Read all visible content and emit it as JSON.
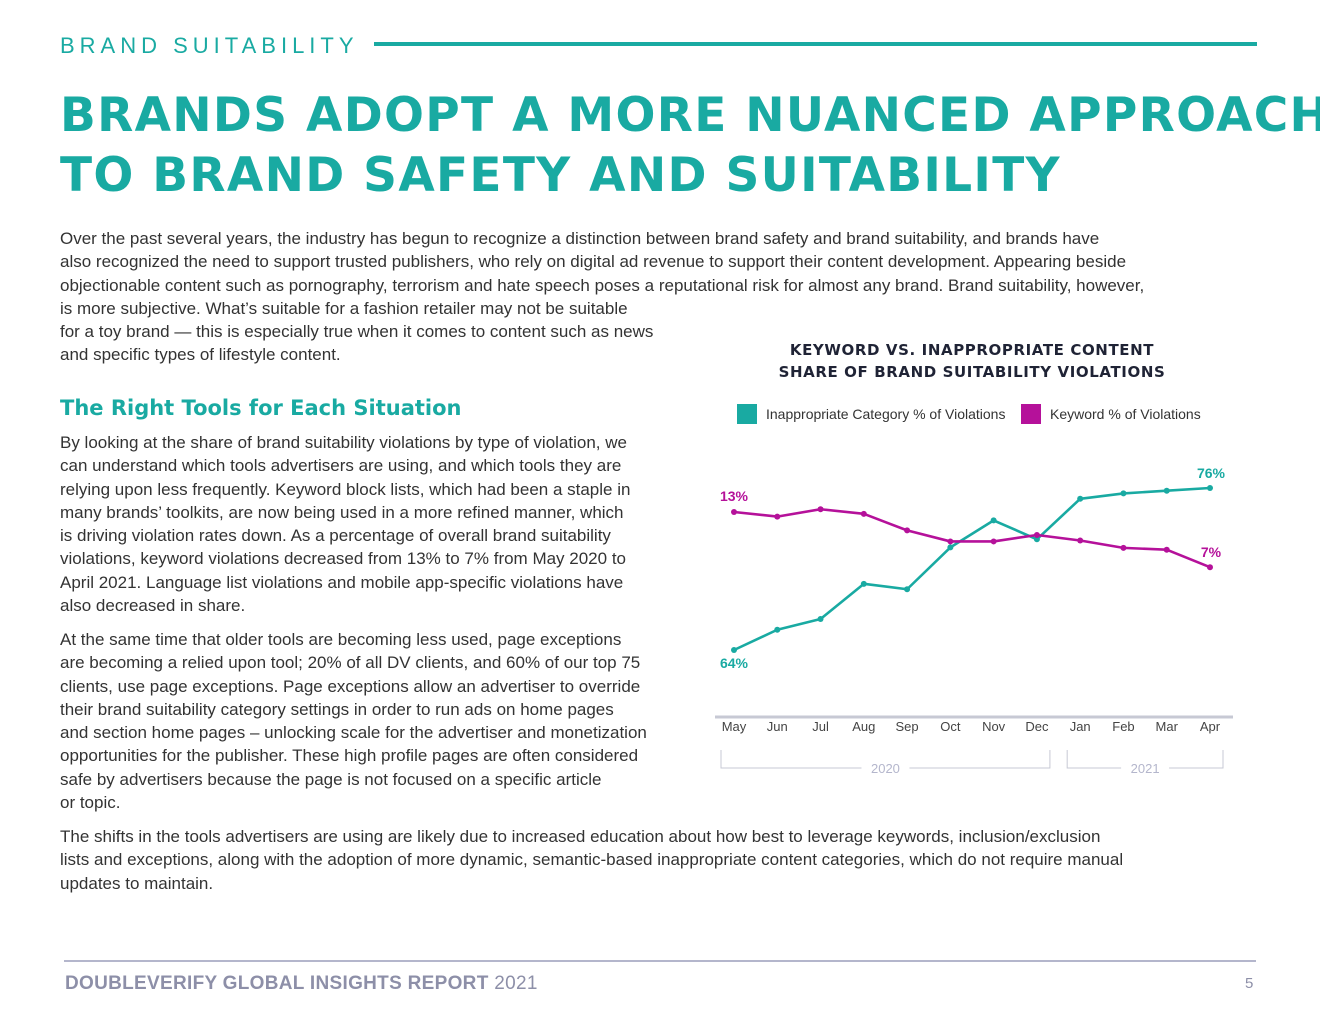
{
  "header": {
    "section_label": "BRAND SUITABILITY",
    "headline": [
      "BRANDS ADOPT A MORE NUANCED APPROACH",
      "TO BRAND SAFETY AND SUITABILITY"
    ]
  },
  "intro_paragraph": [
    "Over the past several years, the industry has begun to recognize a distinction between brand safety and brand suitability, and brands have",
    "also recognized the need to support trusted publishers, who rely on digital ad revenue to support their content development. Appearing beside",
    "objectionable content such as pornography, terrorism and hate speech poses a reputational risk for almost any brand. Brand suitability, however,",
    "is more subjective. What’s suitable for a fashion retailer may not be suitable",
    "for a toy brand — this is especially true when it comes to content such as news",
    "and specific types of lifestyle content."
  ],
  "subheading": "The Right Tools for Each Situation",
  "body_paragraph_1": [
    "By looking at the share of brand suitability violations by type of violation, we",
    "can understand which tools advertisers are using, and which tools they are",
    "relying upon less frequently. Keyword block lists, which had been a staple in",
    "many brands’ toolkits, are now being used in a more refined manner, which",
    "is driving violation rates down. As a percentage of overall brand suitability",
    "violations, keyword violations decreased from 13% to 7% from May 2020 to",
    "April 2021. Language list violations and mobile app-specific violations have",
    "also decreased in share."
  ],
  "body_paragraph_2": [
    "At the same time that older tools are becoming less used, page exceptions",
    "are becoming a relied upon tool; 20% of all DV clients, and 60% of our top 75",
    "clients, use page exceptions. Page exceptions allow an advertiser to override",
    "their brand suitability category settings in order to run ads on home pages",
    "and section home pages – unlocking scale for the advertiser and monetization",
    "opportunities for the publisher. These high profile pages are often considered",
    "safe by advertisers because the page is not focused on a specific article",
    "or topic."
  ],
  "closing_paragraph": [
    "The shifts in the tools advertisers are using are likely due to increased education about how best to leverage keywords, inclusion/exclusion",
    "lists and exceptions, along with the adoption of more dynamic, semantic-based inappropriate content categories, which do not require manual",
    "updates to maintain."
  ],
  "chart_data": {
    "type": "line",
    "title": [
      "KEYWORD VS. INAPPROPRIATE CONTENT",
      "SHARE OF BRAND SUITABILITY VIOLATIONS"
    ],
    "categories": [
      "May",
      "Jun",
      "Jul",
      "Aug",
      "Sep",
      "Oct",
      "Nov",
      "Dec",
      "Jan",
      "Feb",
      "Mar",
      "Apr"
    ],
    "year_groups": [
      {
        "label": "2020",
        "from": "May",
        "to": "Dec"
      },
      {
        "label": "2021",
        "from": "Jan",
        "to": "Apr"
      }
    ],
    "series": [
      {
        "name": "Inappropriate Category % of Violations",
        "color": "#19aaa2",
        "values": [
          64,
          65.5,
          66.3,
          68.9,
          68.5,
          71.6,
          73.6,
          72.2,
          75.2,
          75.6,
          75.8,
          76
        ],
        "start_label": "64%",
        "end_label": "76%"
      },
      {
        "name": "Keyword % of Violations",
        "color": "#b5119a",
        "values": [
          13,
          12.5,
          13.3,
          12.8,
          11,
          9.8,
          9.8,
          10.5,
          9.9,
          9.1,
          8.9,
          7
        ],
        "start_label": "13%",
        "end_label": "7%"
      }
    ],
    "xlabel": "",
    "ylabel": "",
    "grid": false,
    "legend_position": "top"
  },
  "footer": {
    "report_title": "DOUBLEVERIFY GLOBAL INSIGHTS REPORT",
    "year": "2021",
    "page_number": "5"
  }
}
